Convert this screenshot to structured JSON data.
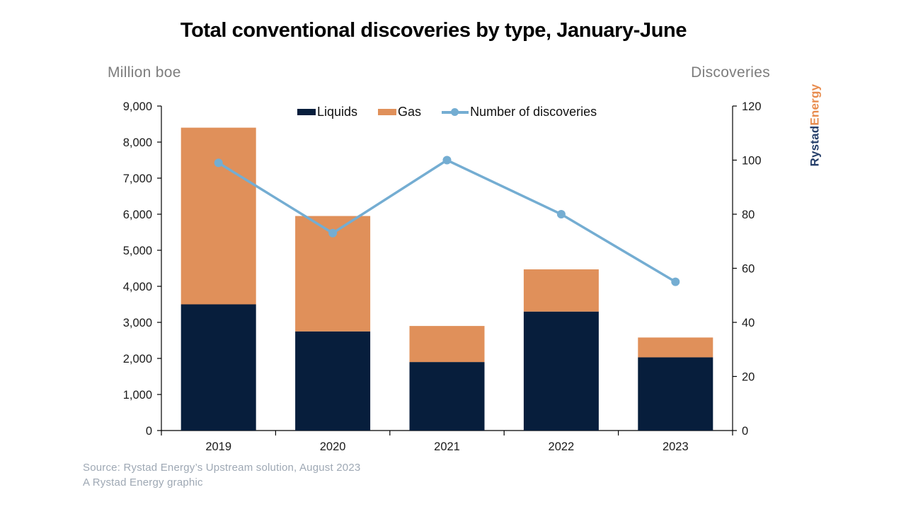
{
  "page": {
    "title": "Total conventional discoveries by type, January-June",
    "left_axis_title": "Million boe",
    "right_axis_title": "Discoveries",
    "source_line1": "Source: Rystad Energy’s Upstream solution, August 2023",
    "source_line2": "A Rystad Energy graphic",
    "logo": {
      "part1": "Rystad",
      "part2": "Energy"
    }
  },
  "colors": {
    "liquids": "#071e3c",
    "gas": "#e0905a",
    "line": "#74add2",
    "axis": "#000000",
    "tick_label": "#1a1a1a",
    "logo_navy": "#27406b",
    "logo_orange": "#e88c4e"
  },
  "chart_data": {
    "type": "bar",
    "subtype": "stacked-bars-with-line",
    "title": "Total conventional discoveries by type, January-June",
    "categories": [
      "2019",
      "2020",
      "2021",
      "2022",
      "2023"
    ],
    "series": [
      {
        "name": "Liquids",
        "type": "bar",
        "stack": true,
        "color": "#071e3c",
        "values": [
          3500,
          2750,
          1900,
          3300,
          2030
        ]
      },
      {
        "name": "Gas",
        "type": "bar",
        "stack": true,
        "color": "#e0905a",
        "values": [
          4900,
          3200,
          1000,
          1170,
          550
        ]
      },
      {
        "name": "Number of discoveries",
        "type": "line",
        "axis": "right",
        "color": "#74add2",
        "values": [
          99,
          73,
          100,
          80,
          55
        ]
      }
    ],
    "left_axis": {
      "title": "Million boe",
      "min": 0,
      "max": 9000,
      "step": 1000
    },
    "right_axis": {
      "title": "Discoveries",
      "min": 0,
      "max": 120,
      "step": 20
    },
    "grid": false,
    "legend_position": "top-center"
  }
}
